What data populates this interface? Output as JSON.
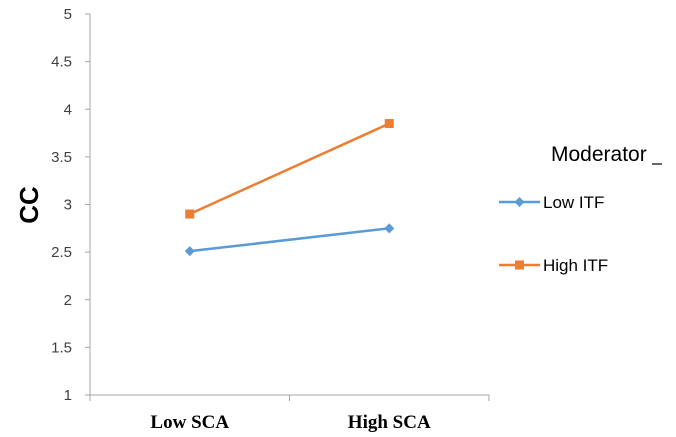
{
  "chart_data": {
    "type": "line",
    "categories": [
      "Low SCA",
      "High SCA"
    ],
    "series": [
      {
        "name": "Low ITF",
        "values": [
          2.51,
          2.75
        ],
        "color": "#5B9BD5",
        "marker": "diamond"
      },
      {
        "name": "High ITF",
        "values": [
          2.9,
          3.85
        ],
        "color": "#ED7D31",
        "marker": "square"
      }
    ],
    "ylabel": "CC",
    "xlabel": "",
    "ylim": [
      1,
      5
    ],
    "yticks": [
      "1",
      "1.5",
      "2",
      "2.5",
      "3",
      "3.5",
      "4",
      "4.5",
      "5"
    ],
    "legend_title": "Moderator",
    "legend_position": "right",
    "grid": false
  }
}
